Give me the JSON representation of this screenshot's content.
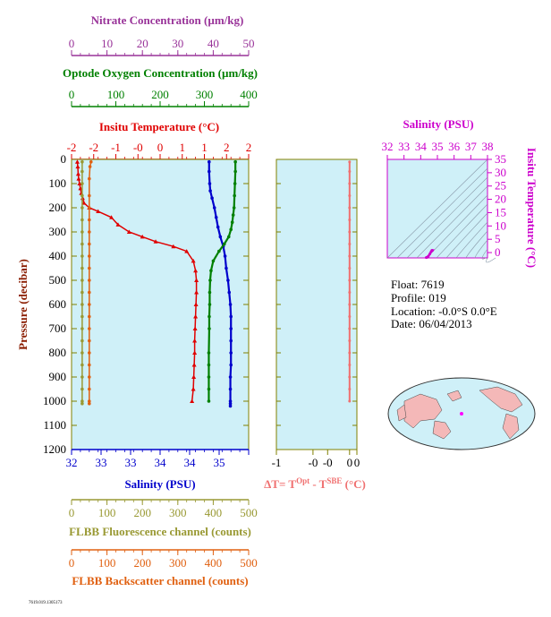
{
  "chart_data": [
    {
      "type": "line",
      "panel": "main-profile",
      "ylabel": "Pressure (decibar)",
      "ylim": [
        1200,
        0
      ],
      "yticks": [
        0,
        100,
        200,
        300,
        400,
        500,
        600,
        700,
        800,
        900,
        1000,
        1100,
        1200
      ],
      "colors": {
        "temperature": "#e00000",
        "salinity": "#0000cc",
        "oxygen": "#008000",
        "fluorescence": "#999933",
        "backscatter": "#e06010",
        "nitrate": "#993399"
      },
      "axes": {
        "salinity": {
          "label": "Salinity (PSU)",
          "range": [
            32,
            35
          ],
          "ticks": [
            "32",
            "33",
            "33",
            "34",
            "34",
            "35"
          ],
          "tickvals": [
            32,
            32.5,
            33,
            33.5,
            34,
            34.5,
            35
          ]
        },
        "temperature": {
          "label": "Insitu Temperature (°C)",
          "range": [
            -2,
            2
          ],
          "ticks": [
            "-2",
            "-2",
            "-1",
            "-0",
            "0",
            "1",
            "1",
            "2",
            "2"
          ],
          "tickvals": [
            -2,
            -1.5,
            -1,
            -0.5,
            0,
            0.5,
            1,
            1.5,
            2
          ]
        },
        "oxygen": {
          "label": "Optode Oxygen Concentration (µm/kg)",
          "range": [
            0,
            400
          ],
          "ticks": [
            "0",
            "100",
            "200",
            "300",
            "400"
          ],
          "tickvals": [
            0,
            100,
            200,
            300,
            400
          ]
        },
        "nitrate": {
          "label": "Nitrate Concentration (µm/kg)",
          "range": [
            0,
            50
          ],
          "ticks": [
            "0",
            "10",
            "20",
            "30",
            "40",
            "50"
          ],
          "tickvals": [
            0,
            10,
            20,
            30,
            40,
            50
          ]
        },
        "fluorescence": {
          "label": "FLBB Fluorescence channel (counts)",
          "range": [
            0,
            500
          ],
          "ticks": [
            "0",
            "100",
            "200",
            "300",
            "400",
            "500"
          ],
          "tickvals": [
            0,
            100,
            200,
            300,
            400,
            500
          ]
        },
        "backscatter": {
          "label": "FLBB Backscatter channel (counts)",
          "range": [
            0,
            500
          ],
          "ticks": [
            "0",
            "100",
            "200",
            "300",
            "400",
            "500"
          ],
          "tickvals": [
            0,
            100,
            200,
            300,
            400,
            500
          ]
        }
      },
      "series": [
        {
          "name": "Insitu Temperature",
          "axis": "temperature",
          "x": [
            -1.87,
            -1.86,
            -1.85,
            -1.84,
            -1.82,
            -1.8,
            -1.78,
            -1.75,
            -1.72,
            -1.6,
            -1.4,
            -1.1,
            -0.95,
            -0.7,
            -0.4,
            -0.1,
            0.3,
            0.6,
            0.75,
            0.8,
            0.82,
            0.82,
            0.81,
            0.8,
            0.79,
            0.78,
            0.78,
            0.77,
            0.76,
            0.75,
            0.72
          ],
          "y": [
            10,
            30,
            60,
            80,
            100,
            120,
            140,
            160,
            180,
            200,
            215,
            240,
            270,
            300,
            320,
            340,
            360,
            380,
            420,
            460,
            500,
            550,
            600,
            650,
            700,
            750,
            800,
            850,
            900,
            950,
            1000
          ]
        },
        {
          "name": "Salinity",
          "axis": "salinity",
          "x": [
            34.33,
            34.33,
            34.34,
            34.35,
            34.38,
            34.42,
            34.45,
            34.48,
            34.52,
            34.57,
            34.6,
            34.62,
            34.65,
            34.67,
            34.69,
            34.7,
            34.7,
            34.7,
            34.7,
            34.7,
            34.69,
            34.69,
            34.69,
            34.69,
            34.69
          ],
          "y": [
            10,
            50,
            100,
            130,
            160,
            200,
            240,
            280,
            320,
            360,
            400,
            450,
            500,
            550,
            600,
            650,
            700,
            750,
            800,
            850,
            900,
            950,
            1000,
            1010,
            1020
          ]
        },
        {
          "name": "Optode Oxygen Concentration",
          "axis": "oxygen",
          "x": [
            370,
            370,
            369,
            368,
            367,
            365,
            363,
            360,
            355,
            345,
            333,
            320,
            315,
            313,
            312,
            312,
            311,
            311,
            310,
            310,
            310,
            310,
            310
          ],
          "y": [
            10,
            50,
            100,
            150,
            200,
            230,
            260,
            290,
            320,
            350,
            380,
            420,
            460,
            500,
            550,
            600,
            650,
            700,
            800,
            850,
            900,
            950,
            1000
          ]
        },
        {
          "name": "FLBB Fluorescence channel",
          "axis": "fluorescence",
          "x": [
            30,
            30,
            30,
            30,
            30,
            30,
            30,
            30,
            30,
            30,
            30,
            30,
            30,
            30,
            30,
            30,
            30,
            30,
            30,
            30,
            30,
            30
          ],
          "y": [
            10,
            50,
            100,
            150,
            200,
            250,
            300,
            350,
            400,
            450,
            500,
            550,
            600,
            650,
            700,
            750,
            800,
            850,
            900,
            950,
            1000,
            1010
          ]
        },
        {
          "name": "FLBB Backscatter channel",
          "axis": "backscatter",
          "x": [
            55,
            52,
            50,
            50,
            50,
            50,
            50,
            50,
            50,
            50,
            50,
            50,
            50,
            50,
            50,
            50,
            50,
            50,
            50,
            50,
            50,
            50
          ],
          "y": [
            10,
            30,
            80,
            150,
            200,
            250,
            300,
            350,
            400,
            450,
            500,
            550,
            600,
            650,
            700,
            750,
            800,
            850,
            900,
            950,
            1000,
            1010
          ]
        }
      ]
    },
    {
      "type": "line",
      "panel": "delta-t",
      "xlabel": "ΔT= T^Opt - T^SBE (°C)",
      "xlim": [
        -1,
        0.1
      ],
      "xticks": [
        "-1",
        "-0",
        "-0",
        "0",
        "0"
      ],
      "xtickvals": [
        -1,
        -0.5,
        -0.3,
        0,
        0.1
      ],
      "ylim": [
        1200,
        0
      ],
      "color": "#f07070",
      "series": [
        {
          "name": "ΔT",
          "x": [
            0.0,
            0.0,
            0.0,
            0.0,
            0.0,
            0.0,
            0.0,
            0.0,
            0.0,
            0.0,
            0.0,
            0.0,
            0.0,
            0.0,
            0.0,
            0.0,
            0.0,
            0.0,
            0.0,
            0.0,
            0.0
          ],
          "y": [
            10,
            50,
            100,
            150,
            200,
            250,
            300,
            350,
            400,
            450,
            500,
            550,
            600,
            650,
            700,
            750,
            800,
            850,
            900,
            950,
            1000
          ]
        }
      ]
    },
    {
      "type": "scatter",
      "panel": "theta-s",
      "title": "Salinity (PSU)",
      "xlabel": "Salinity (PSU)",
      "ylabel": "Insitu Temperature (°C)",
      "xlim": [
        32,
        38
      ],
      "ylim": [
        -2,
        35
      ],
      "xticks": [
        "32",
        "33",
        "34",
        "35",
        "36",
        "37",
        "38"
      ],
      "yticks": [
        "0",
        "5",
        "10",
        "15",
        "20",
        "25",
        "30",
        "35"
      ],
      "color": "#cc00cc",
      "series": [
        {
          "name": "T-S",
          "x": [
            34.33,
            34.38,
            34.45,
            34.55,
            34.62,
            34.67,
            34.7,
            34.69
          ],
          "y": [
            -1.87,
            -1.78,
            -1.4,
            -0.5,
            0.3,
            0.8,
            0.8,
            0.72
          ]
        }
      ]
    }
  ],
  "info": {
    "float": "Float:  7619",
    "profile": "Profile:  019",
    "location": "Location:  -0.0°S   0.0°E",
    "date": "Date:  06/04/2013"
  },
  "footer": "7619.019.1305173"
}
